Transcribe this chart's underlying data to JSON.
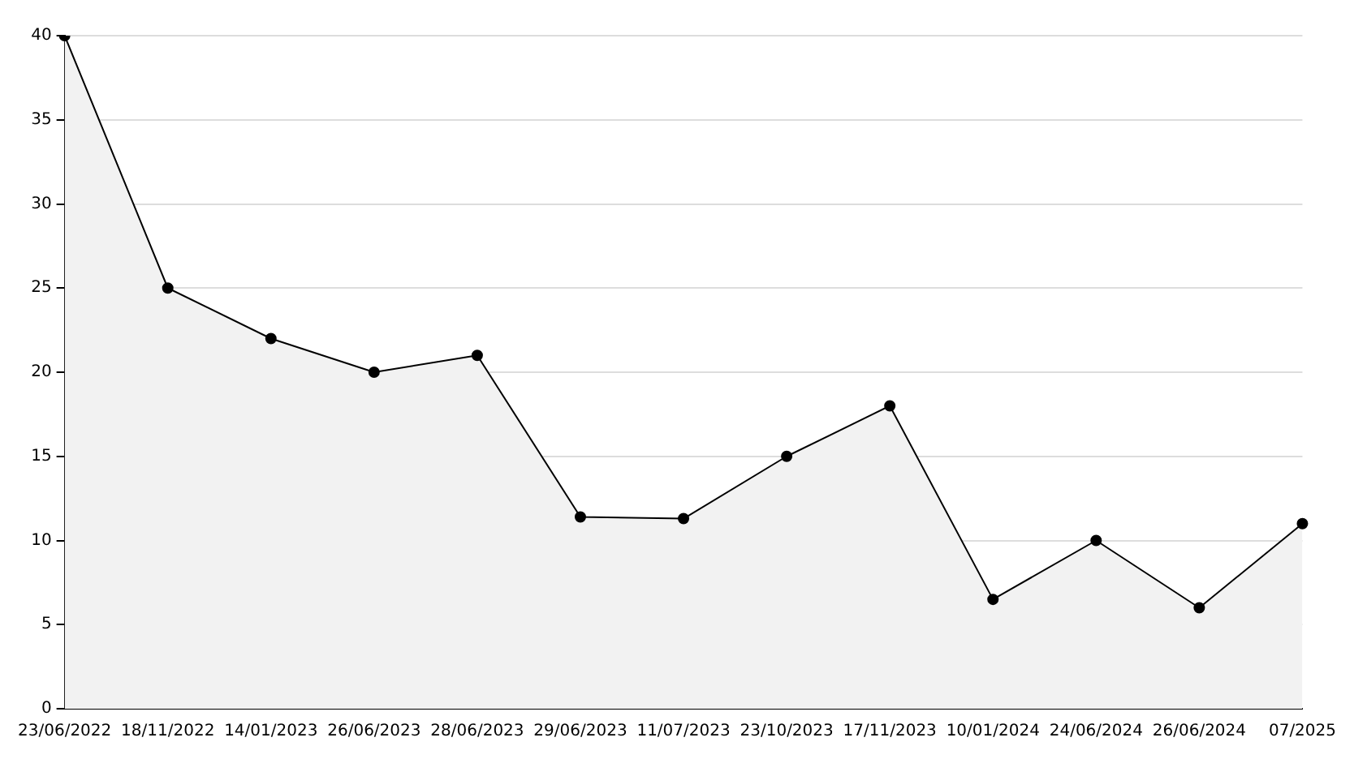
{
  "chart_data": {
    "type": "area",
    "categories": [
      "23/06/2022",
      "18/11/2022",
      "14/01/2023",
      "26/06/2023",
      "28/06/2023",
      "29/06/2023",
      "11/07/2023",
      "23/10/2023",
      "17/11/2023",
      "10/01/2024",
      "24/06/2024",
      "26/06/2024",
      "07/2025"
    ],
    "series": [
      {
        "color": "#000000",
        "values": [
          40,
          25,
          22,
          20,
          21,
          11.4,
          11.3,
          15,
          18,
          6.5,
          10,
          6,
          11
        ]
      }
    ],
    "ylim": [
      0,
      40
    ],
    "yticks": [
      0,
      5,
      10,
      15,
      20,
      25,
      30,
      35,
      40
    ],
    "grid": "y",
    "legend": false,
    "marker": "circle",
    "line_style": "solid"
  }
}
